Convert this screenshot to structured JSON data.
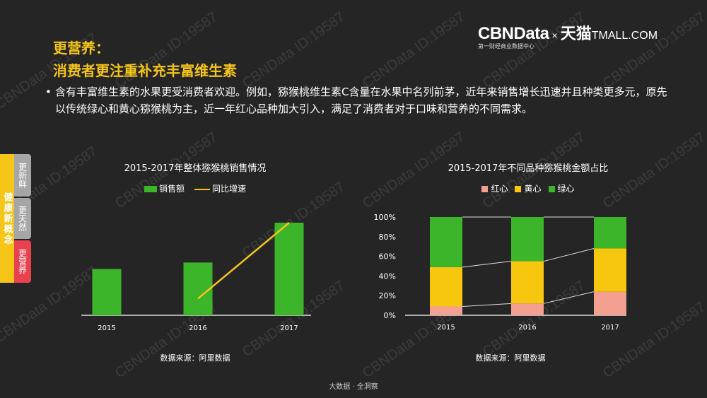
{
  "watermark": "CBNData ID:19587",
  "logo": {
    "brand": "CBNData",
    "times": "×",
    "partner_cn": "天猫",
    "partner_en": "TMALL.COM",
    "subtitle": "第一财经商业数据中心"
  },
  "heading": {
    "line1": "更营养：",
    "line2": "消费者更注重补充丰富维生素"
  },
  "bullet": "含有丰富维生素的水果更受消费者欢迎。例如，猕猴桃维生素C含量在水果中名列前茅，近年来销售增长迅速并且种类更多元，原先以传统绿心和黄心猕猴桃为主，近一年红心品种加大引入，满足了消费者对于口味和营养的不同需求。",
  "sidebar": {
    "main": "健康新概念",
    "tabs": [
      {
        "label": "更新鲜",
        "color": "#a6a6a6"
      },
      {
        "label": "更天然",
        "color": "#a6a6a6"
      },
      {
        "label": "更营养",
        "color": "#e8424f"
      }
    ]
  },
  "footer": "大数据 · 全洞察",
  "chart_data": [
    {
      "type": "bar",
      "title": "2015-2017年整体猕猴桃销售情况",
      "categories": [
        "2015",
        "2016",
        "2017"
      ],
      "series": [
        {
          "name": "销售额",
          "kind": "bar",
          "color": "#3cb52a",
          "values": [
            50,
            57,
            100
          ]
        },
        {
          "name": "同比增速",
          "kind": "line",
          "color": "#f5c518",
          "values": [
            null,
            18,
            100
          ]
        }
      ],
      "y_axis_shown": false,
      "values_note": "relative (unlabeled axis)",
      "source": "数据来源：阿里数据",
      "legend": "top"
    },
    {
      "type": "bar",
      "stacked": true,
      "title": "2015-2017年不同品种猕猴桃金额占比",
      "categories": [
        "2015",
        "2016",
        "2017"
      ],
      "series": [
        {
          "name": "红心",
          "color": "#f4a090",
          "values": [
            9,
            12,
            24
          ]
        },
        {
          "name": "黄心",
          "color": "#f7c60e",
          "values": [
            40,
            43,
            44
          ]
        },
        {
          "name": "绿心",
          "color": "#3cb52a",
          "values": [
            51,
            45,
            32
          ]
        }
      ],
      "yticks": [
        "0%",
        "20%",
        "40%",
        "60%",
        "80%",
        "100%"
      ],
      "ylim": [
        0,
        100
      ],
      "source": "数据来源：阿里数据",
      "legend": "top"
    }
  ]
}
